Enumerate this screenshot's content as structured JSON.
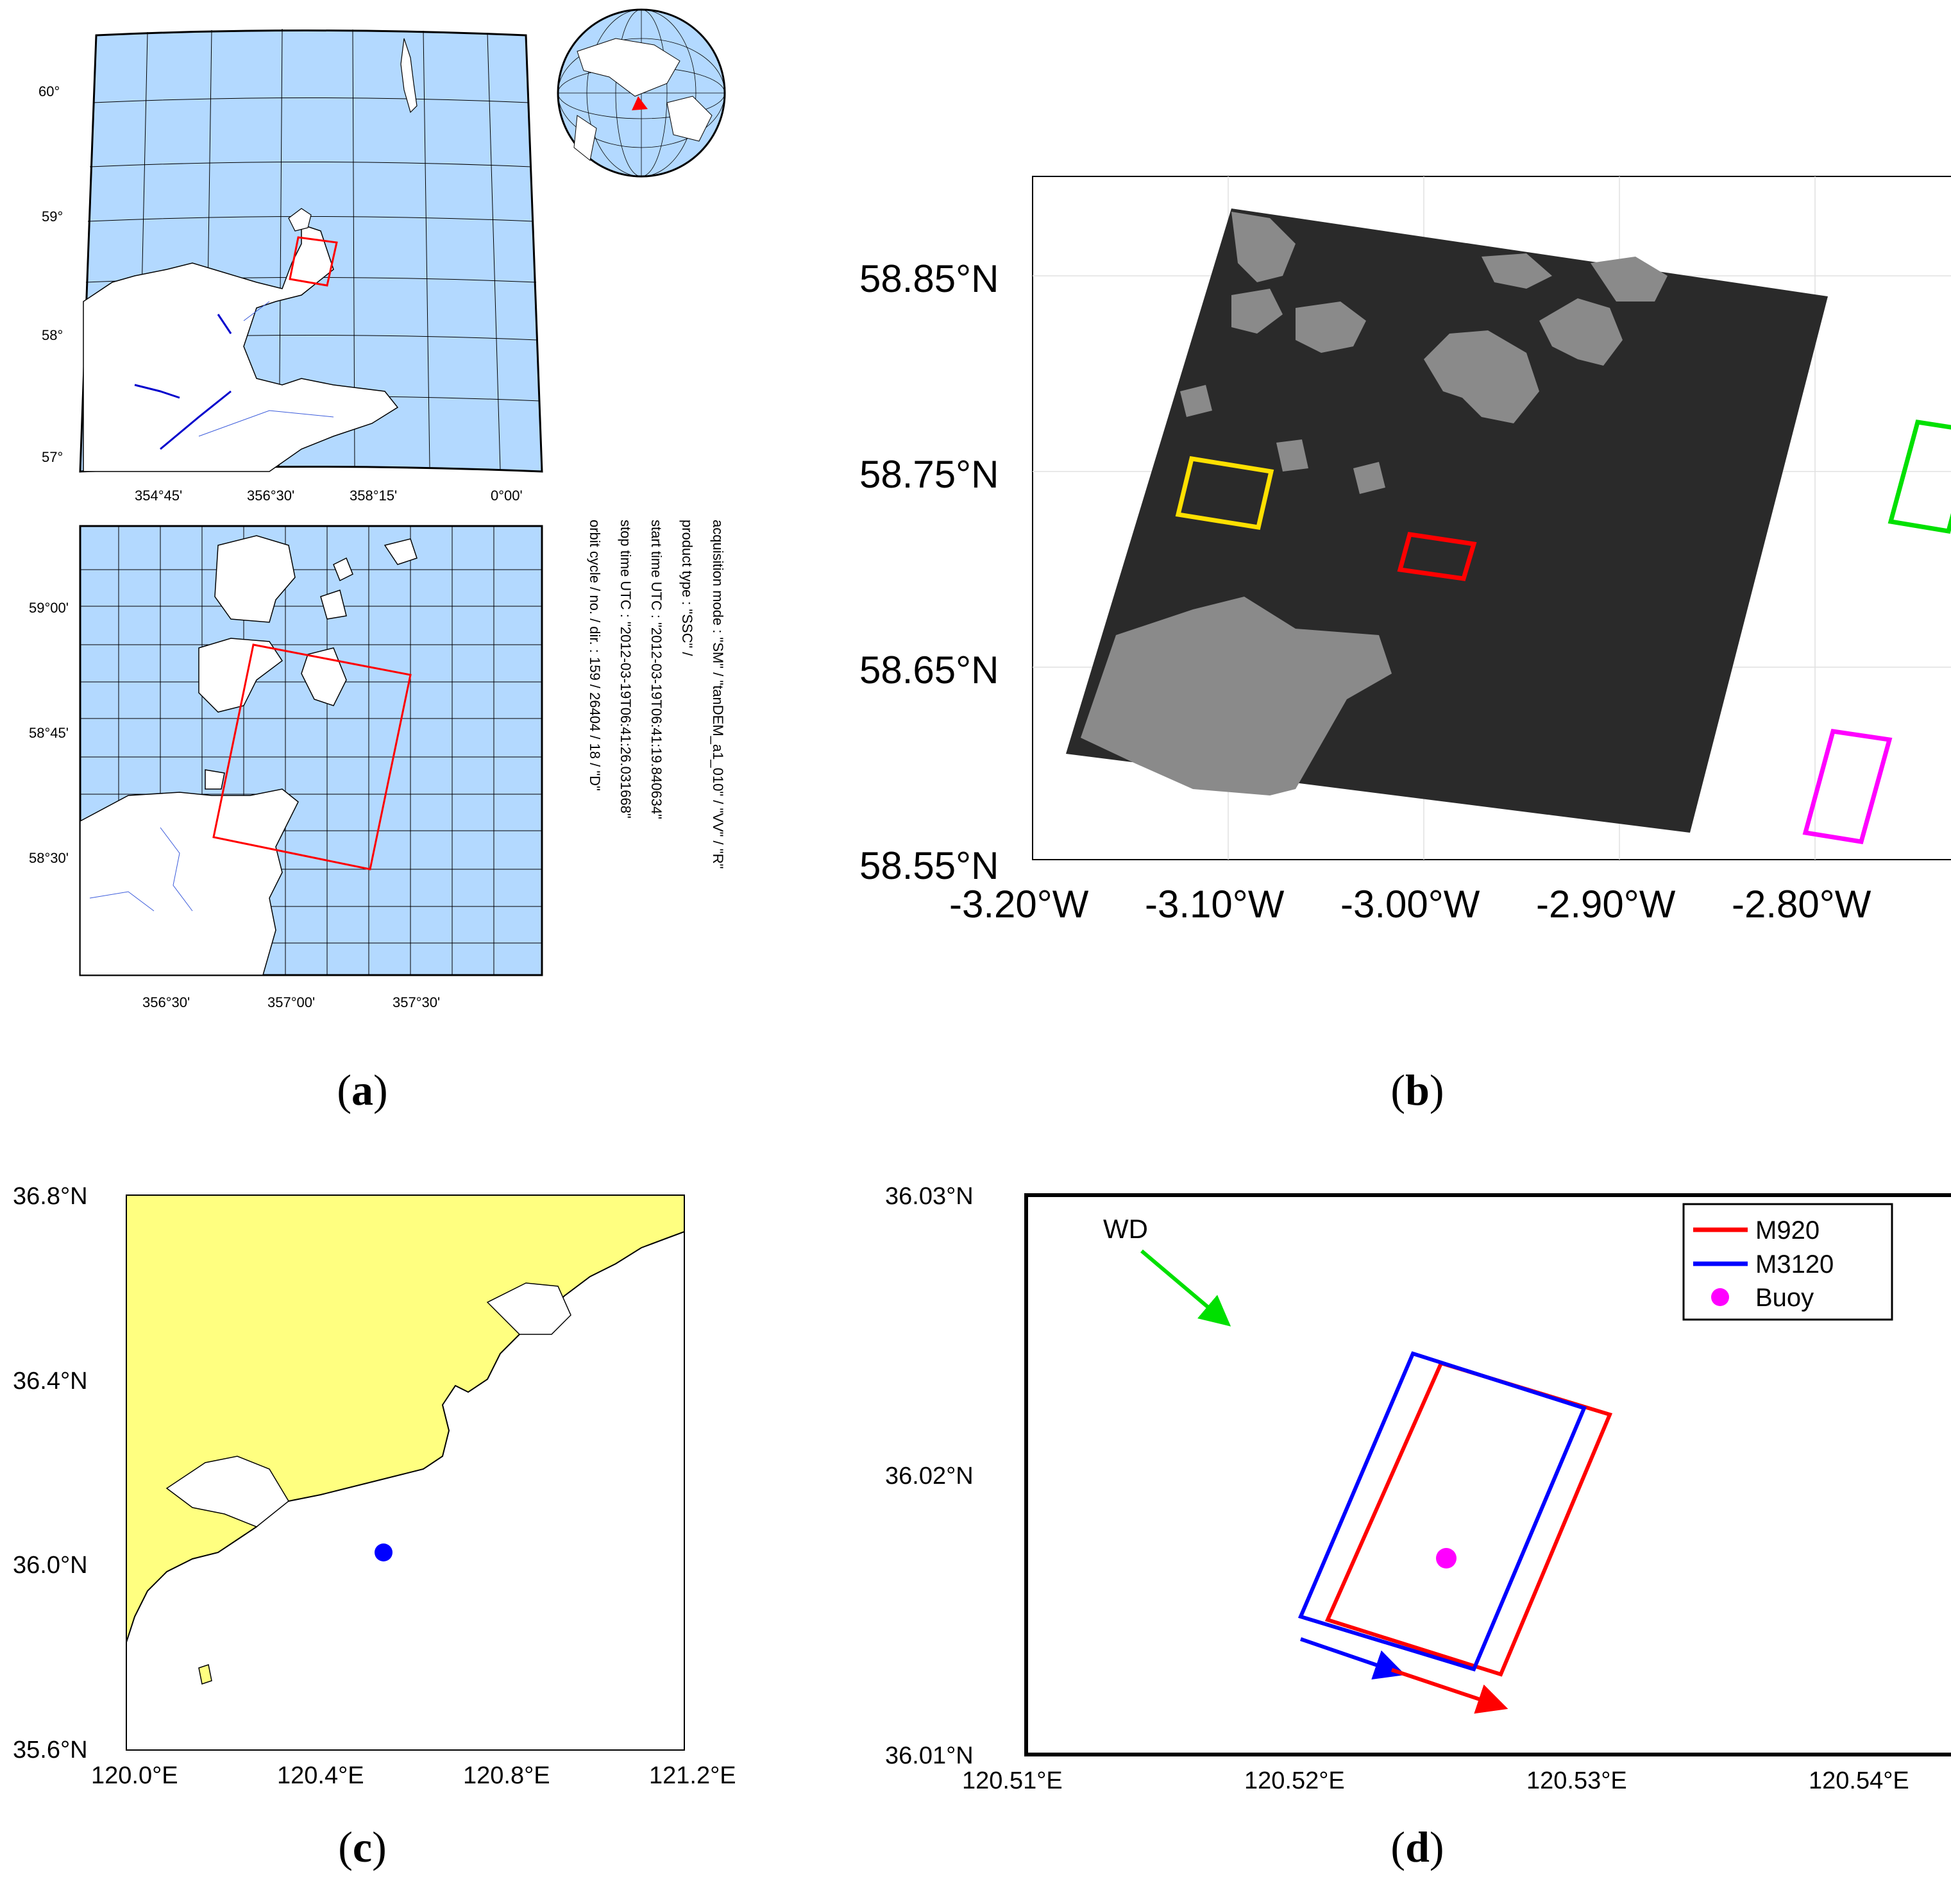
{
  "panel_a": {
    "caption": "a",
    "upper_map": {
      "lat_labels": [
        "60°",
        "59°",
        "58°",
        "57°"
      ],
      "lon_labels": [
        "354°45'",
        "356°30'",
        "358°15'",
        "0°00'"
      ]
    },
    "lower_map": {
      "lat_labels": [
        "59°00'",
        "58°45'",
        "58°30'"
      ],
      "lon_labels": [
        "356°30'",
        "357°00'",
        "357°30'"
      ]
    },
    "metadata": [
      "acquisition mode : \"SM\" / \"tanDEM_a1_010\" / \"VV\" / \"R\"",
      "product type    : \"SSC\" /",
      "start time UTC  : \"2012-03-19T06:41:19.840634\"",
      "stop time UTC   : \"2012-03-19T06:41:26.031668\"",
      "orbit cycle / no. / dir. : 159 / 26404 / 18 / \"D\""
    ]
  },
  "panel_b": {
    "caption": "b",
    "lat_labels": [
      "58.85°N",
      "58.75°N",
      "58.65°N",
      "58.55°N"
    ],
    "lon_labels": [
      "-3.20°W",
      "-3.10°W",
      "-3.00°W",
      "-2.90°W",
      "-2.80°W"
    ],
    "box_colors": {
      "yellow": "#ffe000",
      "red": "#ff0000",
      "green": "#00e000",
      "magenta": "#ff00ff"
    }
  },
  "panel_c": {
    "caption": "c",
    "lat_labels": [
      "36.8°N",
      "36.4°N",
      "36.0°N",
      "35.6°N"
    ],
    "lon_labels": [
      "120.0°E",
      "120.4°E",
      "120.8°E",
      "121.2°E"
    ],
    "land_color": "#ffff80",
    "buoy_color": "#0000ff"
  },
  "panel_d": {
    "caption": "d",
    "lat_labels": [
      "36.03°N",
      "36.02°N",
      "36.01°N"
    ],
    "lon_labels": [
      "120.51°E",
      "120.52°E",
      "120.53°E",
      "120.54°E"
    ],
    "wd_label": "WD",
    "legend": [
      {
        "name": "M920",
        "color": "#ff0000"
      },
      {
        "name": "M3120",
        "color": "#0000ff"
      },
      {
        "name": "Buoy",
        "color": "#ff00ff"
      }
    ]
  },
  "colors": {
    "sea": "#b3d9ff",
    "land": "#ffffff"
  }
}
